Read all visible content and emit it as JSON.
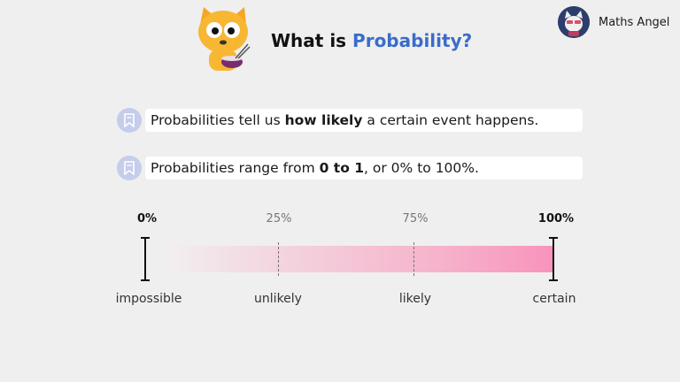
{
  "header": {
    "title_prefix": "What is ",
    "title_accent": "Probability?",
    "brand_name": "Maths Angel",
    "accent_color": "#3b6cc9"
  },
  "bullets": [
    {
      "icon": "bookmark-icon",
      "parts": [
        "Probabilities tell us ",
        "how likely",
        " a certain event happens."
      ]
    },
    {
      "icon": "bookmark-icon",
      "parts": [
        "Probabilities range from ",
        "0 to 1",
        ", or 0% to 100%."
      ]
    }
  ],
  "scale": {
    "ticks": [
      {
        "percent": "0%",
        "label": "impossible"
      },
      {
        "percent": "25%",
        "label": "unlikely"
      },
      {
        "percent": "75%",
        "label": "likely"
      },
      {
        "percent": "100%",
        "label": "certain"
      }
    ],
    "gradient_start": "#f2eff1",
    "gradient_end": "#f893bc"
  }
}
